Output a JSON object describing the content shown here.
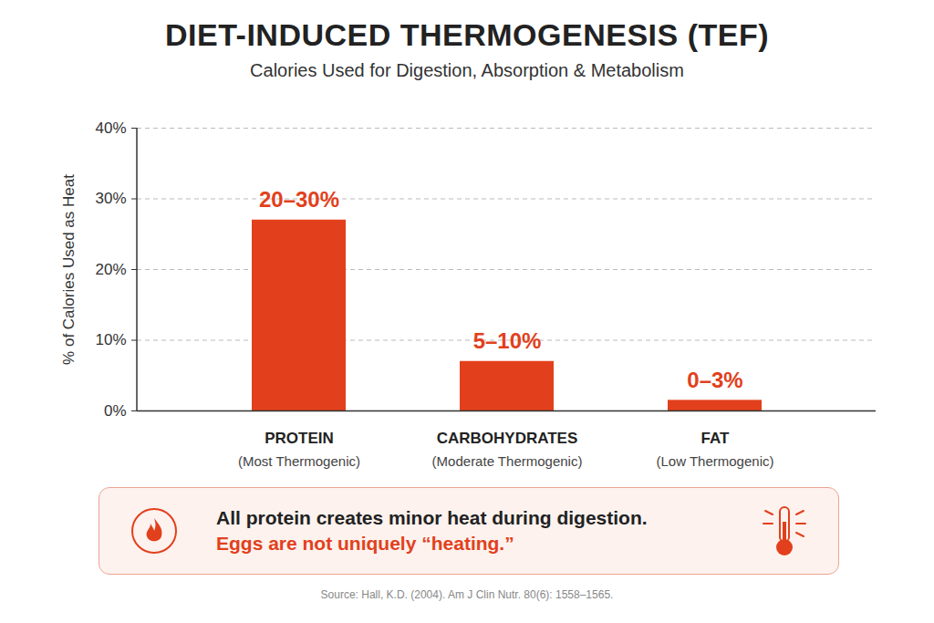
{
  "chart_data": {
    "type": "bar",
    "title": "DIET-INDUCED THERMOGENESIS (TEF)",
    "subtitle": "Calories Used for Digestion, Absorption & Metabolism",
    "y_label": "% of Calories Used as Heat",
    "categories": [
      "PROTEIN",
      "CARBOHYDRATES",
      "FAT"
    ],
    "category_notes": [
      "(Most Thermogenic)",
      "(Moderate Thermogenic)",
      "(Low Thermogenic)"
    ],
    "values": [
      27,
      7,
      1.5
    ],
    "bar_labels": [
      "20–30%",
      "5–10%",
      "0–3%"
    ],
    "color": "#e2401c",
    "ylim": [
      0,
      40
    ],
    "yticks": [
      {
        "value": 0,
        "label": "0%"
      },
      {
        "value": 10,
        "label": "10%"
      },
      {
        "value": 20,
        "label": "20%"
      },
      {
        "value": 30,
        "label": "30%"
      },
      {
        "value": 40,
        "label": "40%"
      }
    ],
    "grid": true,
    "callout": [
      "All protein creates minor heat during digestion.",
      "Eggs are not uniquely “heating.”"
    ],
    "source": "Source: Hall, K.D. (2004). Am J Clin Nutr. 80(6): 1558–1565."
  }
}
